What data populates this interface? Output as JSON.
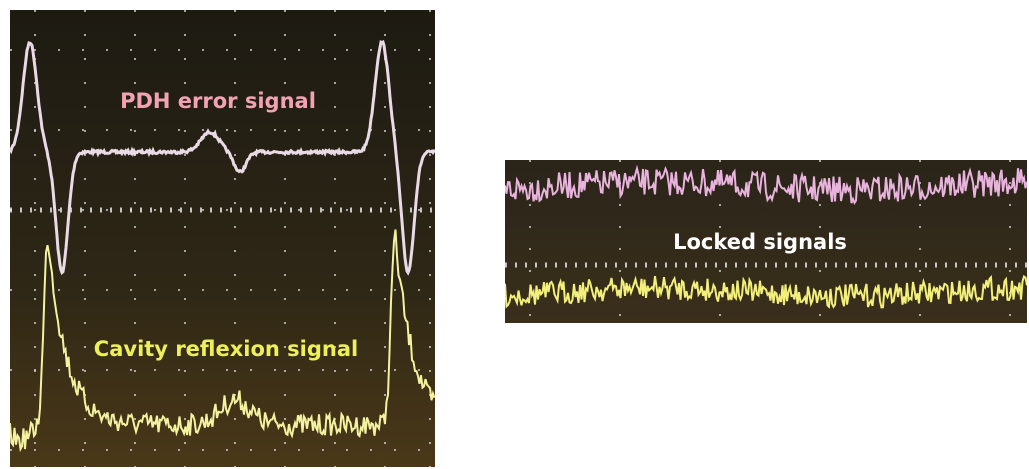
{
  "left_panel": {
    "pdh_label": "PDH error signal",
    "reflexion_label": "Cavity reflexion signal"
  },
  "right_panel": {
    "label": "Locked signals"
  }
}
